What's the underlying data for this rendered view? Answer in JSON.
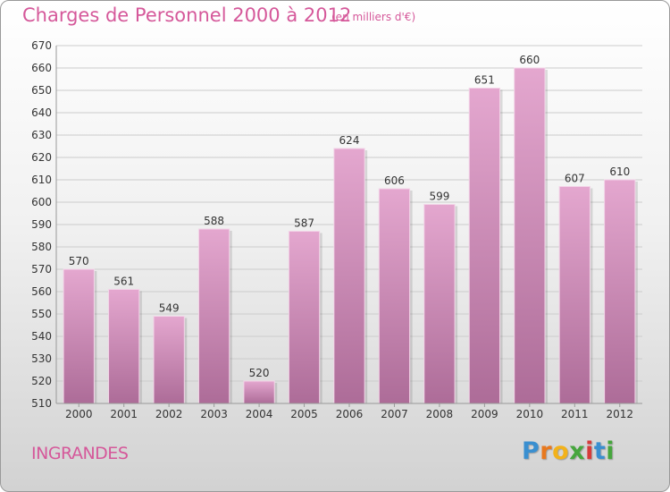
{
  "title": "Charges de Personnel 2000 à 2012",
  "subtitle": "(en milliers d'€)",
  "city": "INGRANDES",
  "logo": "Proxiti",
  "colors": {
    "title": "#d5589a",
    "bar_top": "#e4a7cf",
    "bar_bottom": "#ad6c98",
    "grid": "#cccccc",
    "axis_text": "#333333"
  },
  "chart_data": {
    "type": "bar",
    "title": "Charges de Personnel 2000 à 2012",
    "subtitle": "(en milliers d'€)",
    "categories": [
      "2000",
      "2001",
      "2002",
      "2003",
      "2004",
      "2005",
      "2006",
      "2007",
      "2008",
      "2009",
      "2010",
      "2011",
      "2012"
    ],
    "values": [
      570,
      561,
      549,
      588,
      520,
      587,
      624,
      606,
      599,
      651,
      660,
      607,
      610
    ],
    "ylim": [
      510,
      670
    ],
    "yticks": [
      510,
      520,
      530,
      540,
      550,
      560,
      570,
      580,
      590,
      600,
      610,
      620,
      630,
      640,
      650,
      660,
      670
    ],
    "grid": true,
    "xlabel": "",
    "ylabel": ""
  }
}
